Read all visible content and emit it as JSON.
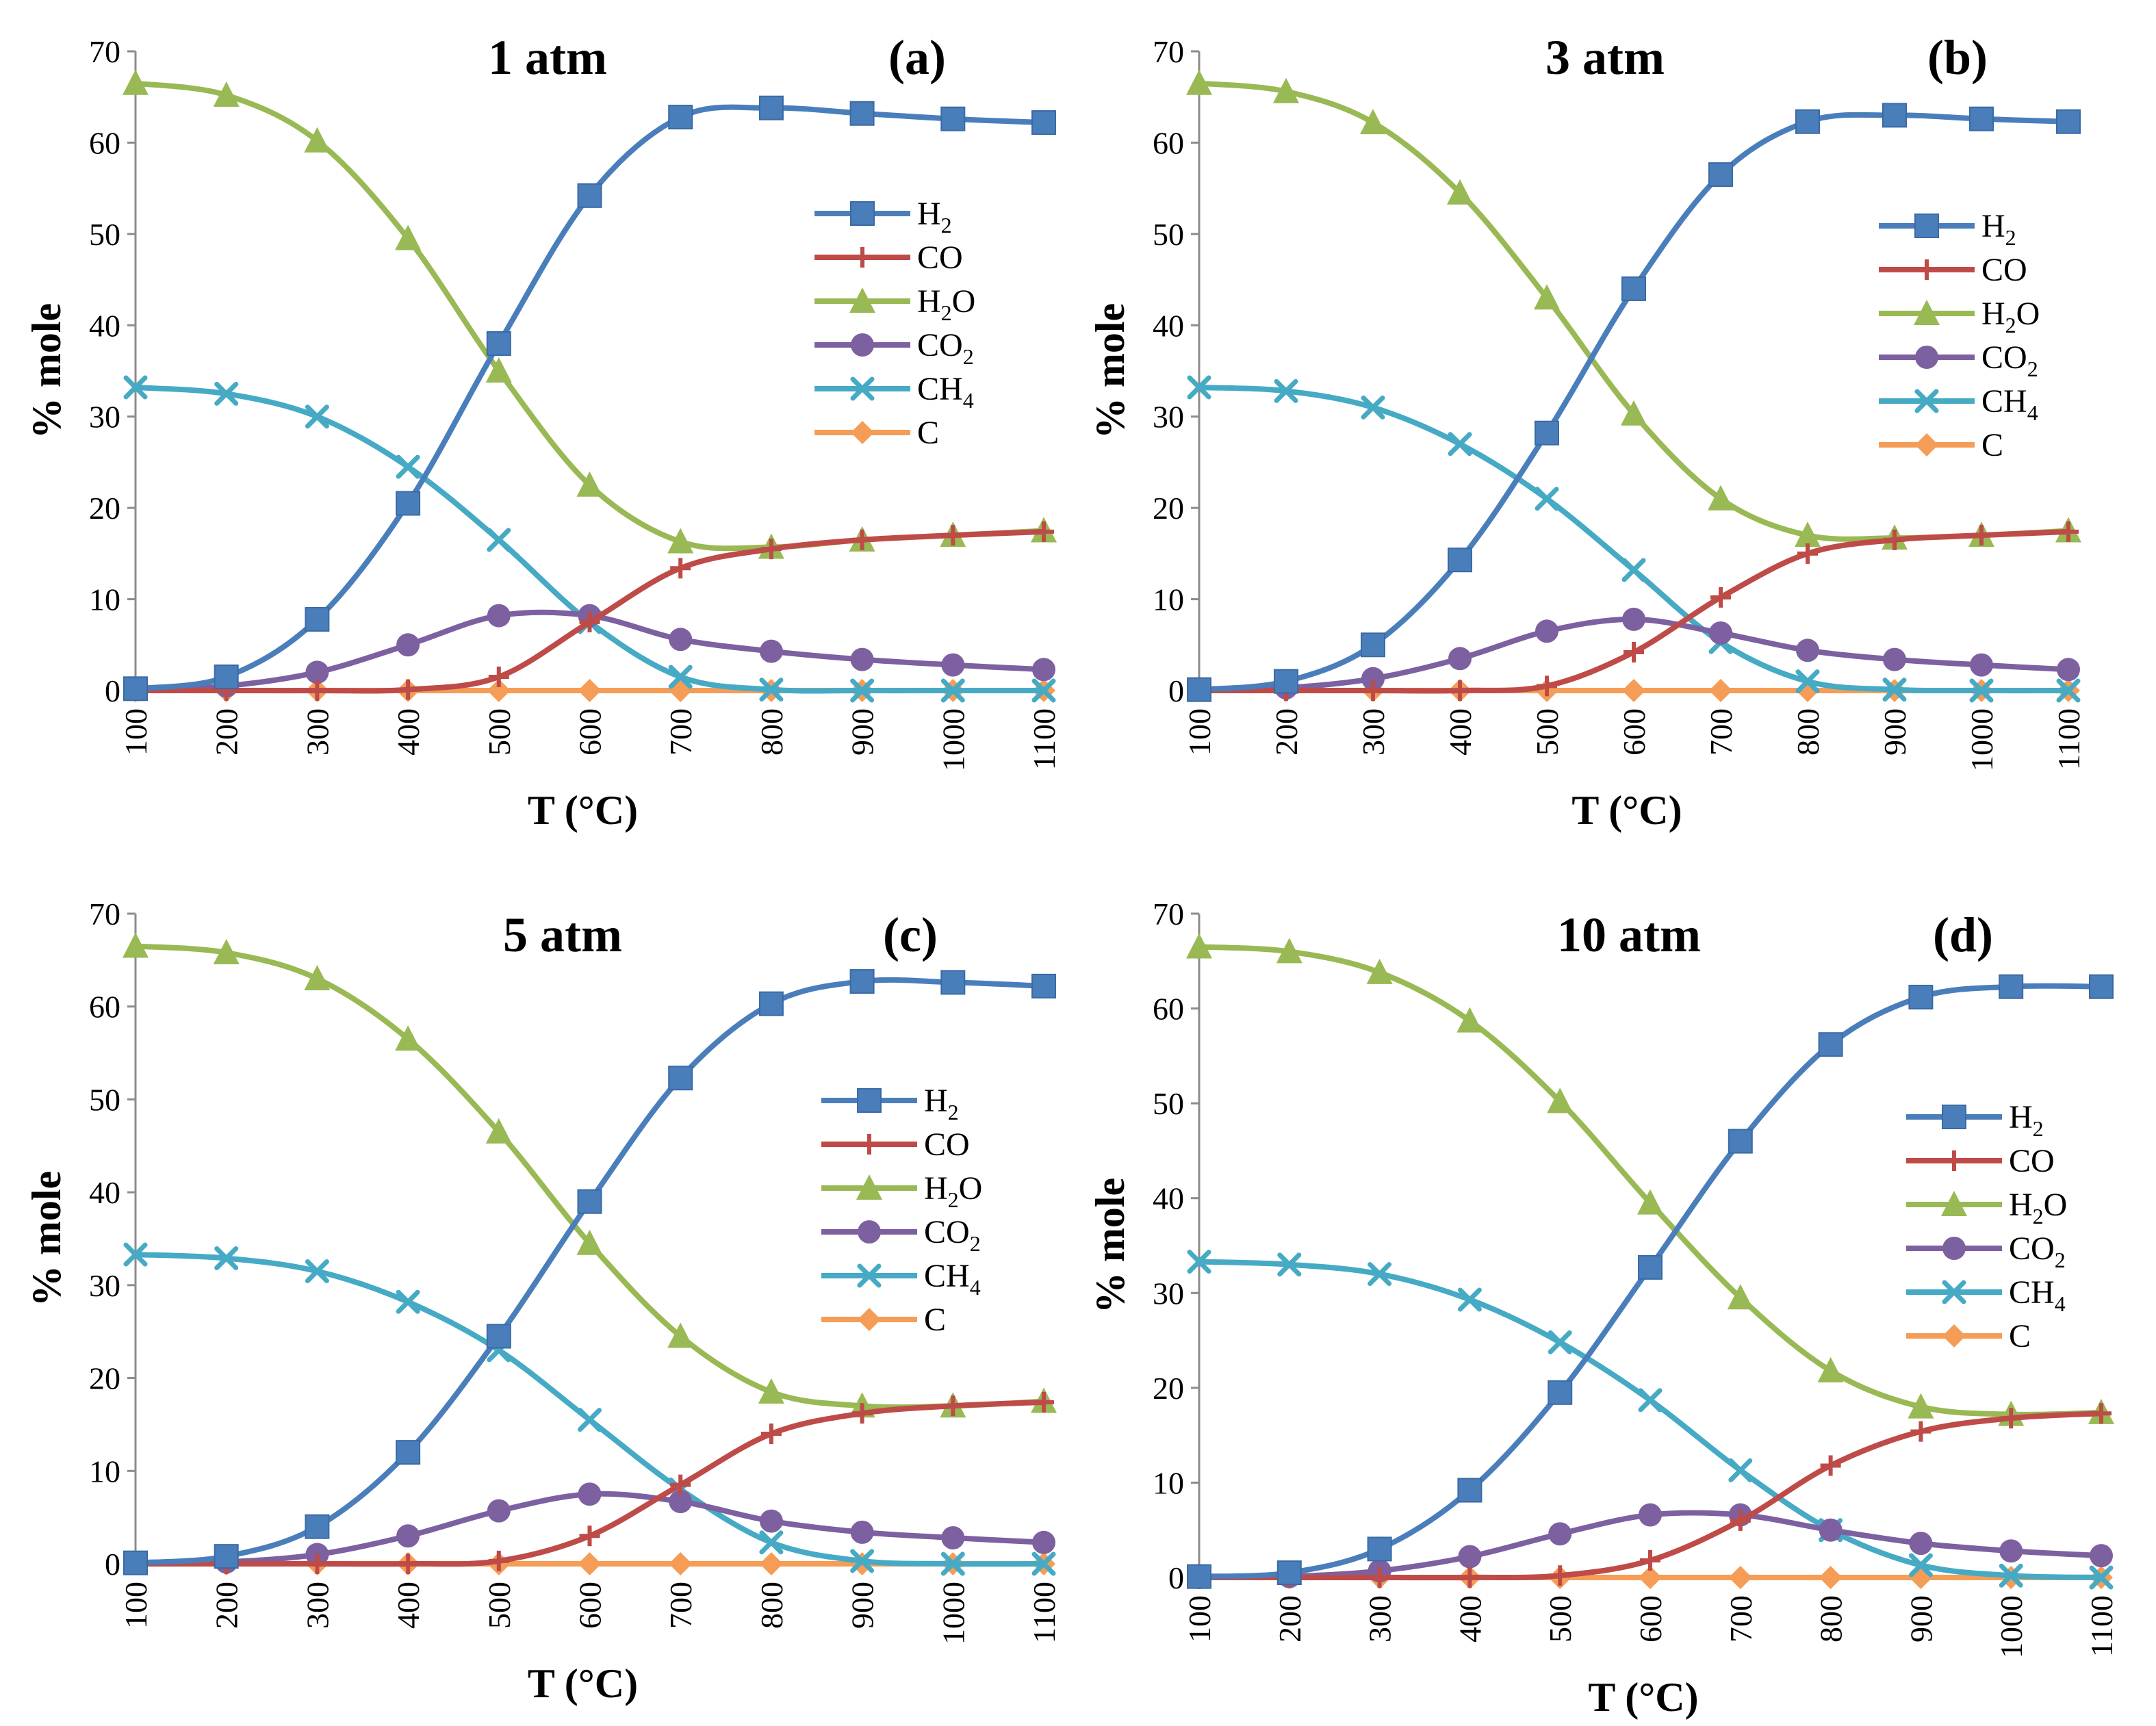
{
  "chart_data": [
    {
      "type": "line",
      "title": "1 atm",
      "label": "(a)",
      "xlabel": "T (°C)",
      "ylabel": "% mole",
      "x": [
        100,
        200,
        300,
        400,
        500,
        600,
        700,
        800,
        900,
        1000,
        1100
      ],
      "ylim": [
        0,
        70
      ],
      "yticks": [
        0,
        10,
        20,
        30,
        40,
        50,
        60,
        70
      ],
      "series": [
        {
          "name": "H2",
          "sub": "2",
          "base": "H",
          "suffix": "",
          "color": "#4a7ebb",
          "marker": "square",
          "values": [
            0.2,
            1.5,
            7.8,
            20.5,
            38.0,
            54.2,
            62.8,
            63.8,
            63.2,
            62.6,
            62.2
          ]
        },
        {
          "name": "CO",
          "sub": "",
          "base": "CO",
          "suffix": "",
          "color": "#be4b48",
          "marker": "plus",
          "values": [
            0,
            0,
            0,
            0.1,
            1.5,
            7.5,
            13.4,
            15.5,
            16.5,
            17.0,
            17.4
          ]
        },
        {
          "name": "H2O",
          "sub": "2",
          "base": "H",
          "suffix": "O",
          "color": "#98b954",
          "marker": "triangle",
          "values": [
            66.5,
            65.2,
            60.2,
            49.5,
            35.0,
            22.5,
            16.3,
            15.7,
            16.5,
            17.0,
            17.5
          ]
        },
        {
          "name": "CO2",
          "sub": "2",
          "base": "CO",
          "suffix": "",
          "color": "#7d60a0",
          "marker": "circle",
          "values": [
            0.1,
            0.5,
            2.0,
            5.0,
            8.2,
            8.2,
            5.6,
            4.3,
            3.4,
            2.8,
            2.3
          ]
        },
        {
          "name": "CH4",
          "sub": "4",
          "base": "CH",
          "suffix": "",
          "color": "#46aac5",
          "marker": "x",
          "values": [
            33.2,
            32.5,
            30.0,
            24.5,
            16.5,
            7.5,
            1.5,
            0.1,
            0,
            0,
            0
          ]
        },
        {
          "name": "C",
          "sub": "",
          "base": "C",
          "suffix": "",
          "color": "#f59d56",
          "marker": "diamond",
          "values": [
            0,
            0,
            0,
            0,
            0,
            0,
            0,
            0,
            0,
            0,
            0
          ]
        }
      ]
    },
    {
      "type": "line",
      "title": "3 atm",
      "label": "(b)",
      "xlabel": "T (°C)",
      "ylabel": "% mole",
      "x": [
        100,
        200,
        300,
        400,
        500,
        600,
        700,
        800,
        900,
        1000,
        1100
      ],
      "ylim": [
        0,
        70
      ],
      "yticks": [
        0,
        10,
        20,
        30,
        40,
        50,
        60,
        70
      ],
      "series": [
        {
          "name": "H2",
          "sub": "2",
          "base": "H",
          "suffix": "",
          "color": "#4a7ebb",
          "marker": "square",
          "values": [
            0.1,
            1.0,
            5.0,
            14.3,
            28.2,
            44.0,
            56.5,
            62.3,
            63.0,
            62.6,
            62.3
          ]
        },
        {
          "name": "CO",
          "sub": "",
          "base": "CO",
          "suffix": "",
          "color": "#be4b48",
          "marker": "plus",
          "values": [
            0,
            0,
            0,
            0,
            0.5,
            4.2,
            10.2,
            15.0,
            16.5,
            17.0,
            17.4
          ]
        },
        {
          "name": "H2O",
          "sub": "2",
          "base": "H",
          "suffix": "O",
          "color": "#98b954",
          "marker": "triangle",
          "values": [
            66.5,
            65.6,
            62.2,
            54.5,
            43.0,
            30.3,
            21.0,
            17.0,
            16.7,
            17.0,
            17.5
          ]
        },
        {
          "name": "CO2",
          "sub": "2",
          "base": "CO",
          "suffix": "",
          "color": "#7d60a0",
          "marker": "circle",
          "values": [
            0.1,
            0.3,
            1.3,
            3.5,
            6.5,
            7.8,
            6.3,
            4.4,
            3.4,
            2.8,
            2.3
          ]
        },
        {
          "name": "CH4",
          "sub": "4",
          "base": "CH",
          "suffix": "",
          "color": "#46aac5",
          "marker": "x",
          "values": [
            33.2,
            32.8,
            31.0,
            27.0,
            21.0,
            13.2,
            5.3,
            1.0,
            0.1,
            0,
            0
          ]
        },
        {
          "name": "C",
          "sub": "",
          "base": "C",
          "suffix": "",
          "color": "#f59d56",
          "marker": "diamond",
          "values": [
            0,
            0,
            0,
            0,
            0,
            0,
            0,
            0,
            0,
            0,
            0
          ]
        }
      ]
    },
    {
      "type": "line",
      "title": "5 atm",
      "label": "(c)",
      "xlabel": "T (°C)",
      "ylabel": "% mole",
      "x": [
        100,
        200,
        300,
        400,
        500,
        600,
        700,
        800,
        900,
        1000,
        1100
      ],
      "ylim": [
        0,
        70
      ],
      "yticks": [
        0,
        10,
        20,
        30,
        40,
        50,
        60,
        70
      ],
      "series": [
        {
          "name": "H2",
          "sub": "2",
          "base": "H",
          "suffix": "",
          "color": "#4a7ebb",
          "marker": "square",
          "values": [
            0.1,
            0.8,
            4.0,
            12.0,
            24.5,
            39.0,
            52.3,
            60.3,
            62.7,
            62.6,
            62.2
          ]
        },
        {
          "name": "CO",
          "sub": "",
          "base": "CO",
          "suffix": "",
          "color": "#be4b48",
          "marker": "plus",
          "values": [
            0,
            0,
            0,
            0,
            0.3,
            3.0,
            8.5,
            14.0,
            16.2,
            17.0,
            17.4
          ]
        },
        {
          "name": "H2O",
          "sub": "2",
          "base": "H",
          "suffix": "O",
          "color": "#98b954",
          "marker": "triangle",
          "values": [
            66.5,
            65.8,
            63.0,
            56.5,
            46.5,
            34.5,
            24.5,
            18.5,
            17.0,
            17.0,
            17.5
          ]
        },
        {
          "name": "CO2",
          "sub": "2",
          "base": "CO",
          "suffix": "",
          "color": "#7d60a0",
          "marker": "circle",
          "values": [
            0.1,
            0.2,
            1.0,
            3.0,
            5.7,
            7.5,
            6.7,
            4.6,
            3.4,
            2.8,
            2.3
          ]
        },
        {
          "name": "CH4",
          "sub": "4",
          "base": "CH",
          "suffix": "",
          "color": "#46aac5",
          "marker": "x",
          "values": [
            33.3,
            32.9,
            31.5,
            28.2,
            23.0,
            15.5,
            8.0,
            2.3,
            0.3,
            0,
            0
          ]
        },
        {
          "name": "C",
          "sub": "",
          "base": "C",
          "suffix": "",
          "color": "#f59d56",
          "marker": "diamond",
          "values": [
            0,
            0,
            0,
            0,
            0,
            0,
            0,
            0,
            0,
            0,
            0
          ]
        }
      ]
    },
    {
      "type": "line",
      "title": "10 atm",
      "label": "(d)",
      "xlabel": "T (°C)",
      "ylabel": "% mole",
      "x": [
        100,
        200,
        300,
        400,
        500,
        600,
        700,
        800,
        900,
        1000,
        1100
      ],
      "ylim": [
        0,
        70
      ],
      "yticks": [
        0,
        10,
        20,
        30,
        40,
        50,
        60,
        70
      ],
      "series": [
        {
          "name": "H2",
          "sub": "2",
          "base": "H",
          "suffix": "",
          "color": "#4a7ebb",
          "marker": "square",
          "values": [
            0.1,
            0.5,
            3.0,
            9.2,
            19.5,
            32.7,
            46.0,
            56.2,
            61.2,
            62.3,
            62.3
          ]
        },
        {
          "name": "CO",
          "sub": "",
          "base": "CO",
          "suffix": "",
          "color": "#be4b48",
          "marker": "plus",
          "values": [
            0,
            0,
            0,
            0,
            0.2,
            1.8,
            6.0,
            11.8,
            15.4,
            16.8,
            17.3
          ]
        },
        {
          "name": "H2O",
          "sub": "2",
          "base": "H",
          "suffix": "O",
          "color": "#98b954",
          "marker": "triangle",
          "values": [
            66.5,
            66.0,
            63.8,
            58.7,
            50.2,
            39.5,
            29.5,
            21.8,
            18.0,
            17.2,
            17.4
          ]
        },
        {
          "name": "CO2",
          "sub": "2",
          "base": "CO",
          "suffix": "",
          "color": "#7d60a0",
          "marker": "circle",
          "values": [
            0,
            0.1,
            0.7,
            2.2,
            4.6,
            6.6,
            6.6,
            5.0,
            3.6,
            2.8,
            2.3
          ]
        },
        {
          "name": "CH4",
          "sub": "4",
          "base": "CH",
          "suffix": "",
          "color": "#46aac5",
          "marker": "x",
          "values": [
            33.3,
            33.0,
            32.0,
            29.3,
            24.8,
            18.7,
            11.3,
            5.0,
            1.3,
            0.2,
            0
          ]
        },
        {
          "name": "C",
          "sub": "",
          "base": "C",
          "suffix": "",
          "color": "#f59d56",
          "marker": "diamond",
          "values": [
            0,
            0,
            0,
            0,
            0,
            0,
            0,
            0,
            0,
            0,
            0
          ]
        }
      ]
    }
  ]
}
